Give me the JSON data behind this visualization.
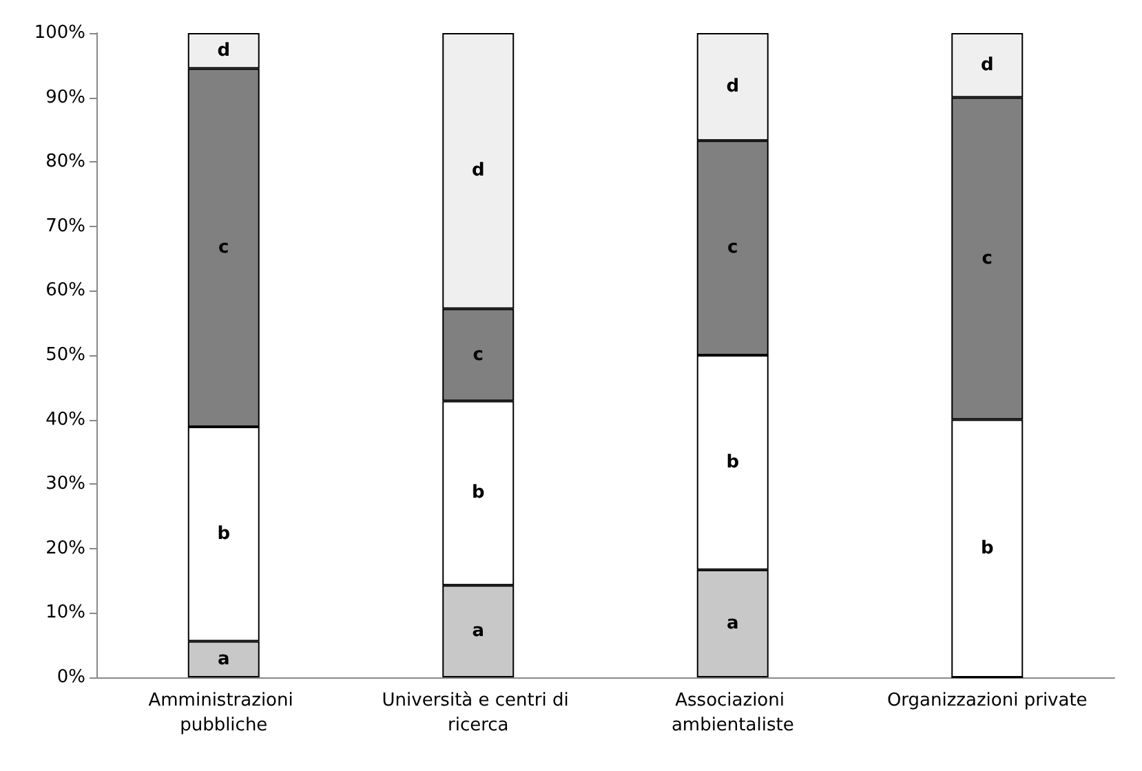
{
  "chart_data": {
    "type": "bar",
    "stacked": true,
    "categories": [
      "Amministrazioni pubbliche",
      "Università e centri di ricerca",
      "Associazioni ambientaliste",
      "Organizzazioni private"
    ],
    "series": [
      {
        "name": "a",
        "color": "#c8c8c8",
        "values": [
          5.6,
          14.3,
          16.7,
          0
        ]
      },
      {
        "name": "b",
        "color": "#ffffff",
        "values": [
          33.3,
          28.6,
          33.3,
          40
        ]
      },
      {
        "name": "c",
        "color": "#808080",
        "values": [
          55.6,
          14.3,
          33.3,
          50
        ]
      },
      {
        "name": "d",
        "color": "#efefef",
        "values": [
          5.5,
          42.8,
          16.7,
          10
        ]
      }
    ],
    "ylim": [
      0,
      100
    ],
    "yticks": [
      {
        "value": 0,
        "label": "0%"
      },
      {
        "value": 10,
        "label": "10%"
      },
      {
        "value": 20,
        "label": "20%"
      },
      {
        "value": 30,
        "label": "30%"
      },
      {
        "value": 40,
        "label": "40%"
      },
      {
        "value": 50,
        "label": "50%"
      },
      {
        "value": 60,
        "label": "60%"
      },
      {
        "value": 70,
        "label": "70%"
      },
      {
        "value": 80,
        "label": "80%"
      },
      {
        "value": 90,
        "label": "90%"
      },
      {
        "value": 100,
        "label": "100%"
      }
    ],
    "grid": false,
    "legend": false
  }
}
